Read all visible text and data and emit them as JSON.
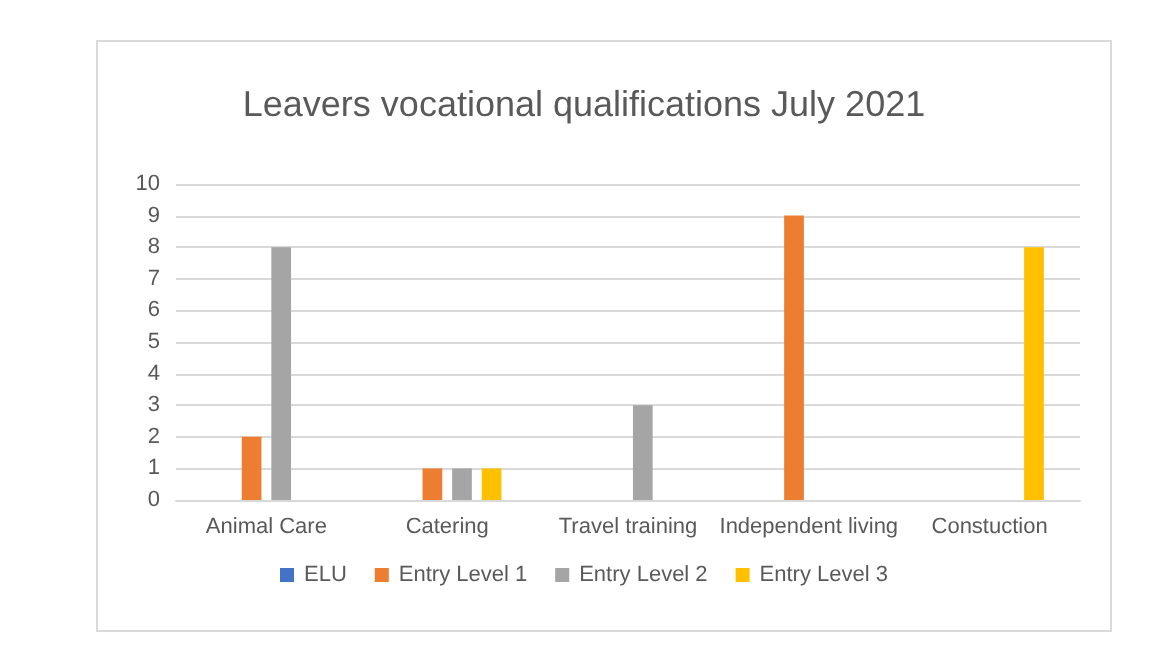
{
  "chart_data": {
    "type": "bar",
    "title": "Leavers vocational qualifications July 2021",
    "categories": [
      "Animal Care",
      "Catering",
      "Travel training",
      "Independent living",
      "Constuction"
    ],
    "series": [
      {
        "name": "ELU",
        "color": "#4472c4",
        "values": [
          0,
          0,
          0,
          0,
          0
        ]
      },
      {
        "name": "Entry Level 1",
        "color": "#ed7d31",
        "values": [
          2,
          1,
          0,
          9,
          0
        ]
      },
      {
        "name": "Entry Level 2",
        "color": "#a5a5a5",
        "values": [
          8,
          1,
          3,
          0,
          0
        ]
      },
      {
        "name": "Entry Level 3",
        "color": "#ffc000",
        "values": [
          0,
          1,
          0,
          0,
          8
        ]
      }
    ],
    "ylim": [
      0,
      10
    ],
    "yticks": [
      0,
      1,
      2,
      3,
      4,
      5,
      6,
      7,
      8,
      9,
      10
    ],
    "grid": "y",
    "legend": "bottom"
  }
}
